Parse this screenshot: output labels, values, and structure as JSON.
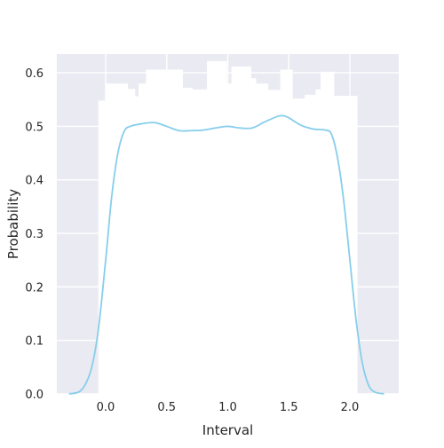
{
  "chart_data": {
    "type": "histogram",
    "xlabel": "Interval",
    "ylabel": "Probability",
    "xlim": [
      -0.4,
      2.4
    ],
    "ylim": [
      0,
      0.635
    ],
    "xticks": [
      0.0,
      0.5,
      1.0,
      1.5,
      2.0
    ],
    "xtick_labels": [
      "0.0",
      "0.5",
      "1.0",
      "1.5",
      "2.0"
    ],
    "yticks": [
      0.0,
      0.1,
      0.2,
      0.3,
      0.4,
      0.5,
      0.6
    ],
    "ytick_labels": [
      "0.0",
      "0.1",
      "0.2",
      "0.3",
      "0.4",
      "0.5",
      "0.6"
    ],
    "grid": true,
    "histogram": {
      "bin_edges": [
        -0.06,
        0.0,
        0.09,
        0.18,
        0.24,
        0.27,
        0.33,
        0.48,
        0.63,
        0.71,
        0.83,
        0.99,
        1.03,
        1.19,
        1.23,
        1.33,
        1.43,
        1.53,
        1.63,
        1.72,
        1.76,
        1.87,
        2.06
      ],
      "values": [
        0.548,
        0.58,
        0.58,
        0.57,
        0.556,
        0.58,
        0.606,
        0.606,
        0.572,
        0.569,
        0.622,
        0.58,
        0.612,
        0.59,
        0.58,
        0.568,
        0.606,
        0.552,
        0.559,
        0.569,
        0.602,
        0.557
      ]
    },
    "series": [
      {
        "kind": "kde",
        "color": "#87ceeb",
        "x": [
          -0.3,
          -0.2,
          -0.12,
          -0.06,
          0.0,
          0.05,
          0.1,
          0.15,
          0.2,
          0.3,
          0.4,
          0.5,
          0.6,
          0.7,
          0.8,
          0.9,
          1.0,
          1.1,
          1.2,
          1.3,
          1.4,
          1.45,
          1.5,
          1.6,
          1.7,
          1.8,
          1.85,
          1.9,
          1.95,
          2.0,
          2.05,
          2.1,
          2.15,
          2.2,
          2.28
        ],
        "y": [
          0.0,
          0.007,
          0.045,
          0.12,
          0.25,
          0.37,
          0.45,
          0.49,
          0.5,
          0.505,
          0.507,
          0.5,
          0.492,
          0.492,
          0.493,
          0.497,
          0.5,
          0.497,
          0.497,
          0.508,
          0.518,
          0.52,
          0.516,
          0.502,
          0.495,
          0.493,
          0.485,
          0.44,
          0.36,
          0.25,
          0.14,
          0.06,
          0.018,
          0.004,
          0.0
        ]
      }
    ]
  }
}
